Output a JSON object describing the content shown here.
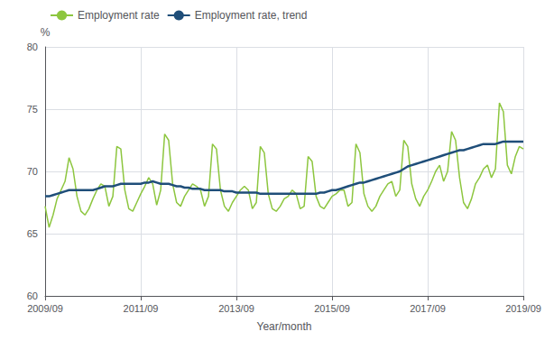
{
  "chart_data": {
    "type": "line",
    "xlabel": "Year/month",
    "ylabel": "%",
    "categories": [
      "2009/09",
      null,
      null,
      null,
      null,
      null,
      null,
      null,
      null,
      null,
      null,
      null,
      null,
      null,
      null,
      null,
      null,
      null,
      null,
      null,
      null,
      null,
      null,
      null,
      "2011/09",
      null,
      null,
      null,
      null,
      null,
      null,
      null,
      null,
      null,
      null,
      null,
      null,
      null,
      null,
      null,
      null,
      null,
      null,
      null,
      null,
      null,
      null,
      null,
      "2013/09",
      null,
      null,
      null,
      null,
      null,
      null,
      null,
      null,
      null,
      null,
      null,
      null,
      null,
      null,
      null,
      null,
      null,
      null,
      null,
      null,
      null,
      null,
      null,
      "2015/09",
      null,
      null,
      null,
      null,
      null,
      null,
      null,
      null,
      null,
      null,
      null,
      null,
      null,
      null,
      null,
      null,
      null,
      null,
      null,
      null,
      null,
      null,
      null,
      "2017/09",
      null,
      null,
      null,
      null,
      null,
      null,
      null,
      null,
      null,
      null,
      null,
      null,
      null,
      null,
      null,
      null,
      null,
      null,
      null,
      null,
      null,
      null,
      null,
      "2019/09"
    ],
    "series": [
      {
        "name": "Employment rate",
        "color": "#8dc63f",
        "values": [
          67.2,
          65.5,
          66.5,
          67.8,
          68.5,
          69.2,
          71.1,
          70.2,
          68.0,
          66.8,
          66.5,
          67.0,
          67.8,
          68.5,
          69.0,
          68.8,
          67.2,
          68.0,
          72.0,
          71.8,
          68.5,
          67.0,
          66.8,
          67.5,
          68.2,
          68.8,
          69.5,
          69.0,
          67.3,
          68.5,
          73.0,
          72.5,
          69.0,
          67.5,
          67.2,
          68.0,
          68.5,
          69.0,
          68.8,
          68.5,
          67.2,
          68.0,
          72.2,
          71.8,
          68.5,
          67.2,
          66.8,
          67.5,
          68.0,
          68.5,
          68.8,
          68.5,
          67.0,
          67.5,
          72.0,
          71.5,
          68.2,
          67.0,
          66.8,
          67.2,
          67.8,
          68.0,
          68.5,
          68.2,
          67.0,
          67.2,
          71.2,
          70.8,
          68.0,
          67.2,
          67.0,
          67.5,
          68.0,
          68.2,
          68.5,
          68.5,
          67.2,
          67.5,
          72.2,
          71.5,
          68.2,
          67.2,
          66.8,
          67.2,
          68.0,
          68.5,
          69.0,
          69.2,
          68.0,
          68.5,
          72.5,
          72.0,
          69.0,
          67.8,
          67.2,
          68.0,
          68.5,
          69.2,
          70.0,
          70.5,
          69.2,
          70.0,
          73.2,
          72.5,
          69.5,
          67.5,
          67.0,
          67.8,
          69.0,
          69.5,
          70.2,
          70.5,
          69.5,
          70.2,
          75.5,
          74.8,
          70.5,
          69.8,
          71.2,
          72.0,
          71.8
        ]
      },
      {
        "name": "Employment rate, trend",
        "color": "#1f4e79",
        "values": [
          68.0,
          68.0,
          68.1,
          68.2,
          68.3,
          68.4,
          68.5,
          68.5,
          68.5,
          68.5,
          68.5,
          68.5,
          68.5,
          68.6,
          68.7,
          68.8,
          68.8,
          68.8,
          68.9,
          69.0,
          69.0,
          69.0,
          69.0,
          69.0,
          69.0,
          69.1,
          69.1,
          69.2,
          69.1,
          69.0,
          69.0,
          69.0,
          68.9,
          68.8,
          68.8,
          68.7,
          68.7,
          68.6,
          68.6,
          68.6,
          68.5,
          68.5,
          68.5,
          68.5,
          68.5,
          68.4,
          68.4,
          68.4,
          68.3,
          68.3,
          68.3,
          68.3,
          68.3,
          68.3,
          68.2,
          68.2,
          68.2,
          68.2,
          68.2,
          68.2,
          68.2,
          68.2,
          68.2,
          68.2,
          68.2,
          68.2,
          68.2,
          68.2,
          68.2,
          68.3,
          68.3,
          68.4,
          68.5,
          68.5,
          68.6,
          68.7,
          68.8,
          68.9,
          69.0,
          69.1,
          69.1,
          69.2,
          69.3,
          69.4,
          69.5,
          69.6,
          69.7,
          69.8,
          69.9,
          70.0,
          70.2,
          70.4,
          70.5,
          70.6,
          70.7,
          70.8,
          70.9,
          71.0,
          71.1,
          71.2,
          71.3,
          71.4,
          71.5,
          71.6,
          71.7,
          71.7,
          71.8,
          71.9,
          72.0,
          72.1,
          72.2,
          72.2,
          72.2,
          72.2,
          72.3,
          72.4,
          72.4,
          72.4,
          72.4,
          72.4,
          72.4
        ]
      }
    ],
    "ylim": [
      60,
      80
    ],
    "yticks": [
      60,
      65,
      70,
      75,
      80
    ],
    "grid": true,
    "legend": "upper left"
  }
}
